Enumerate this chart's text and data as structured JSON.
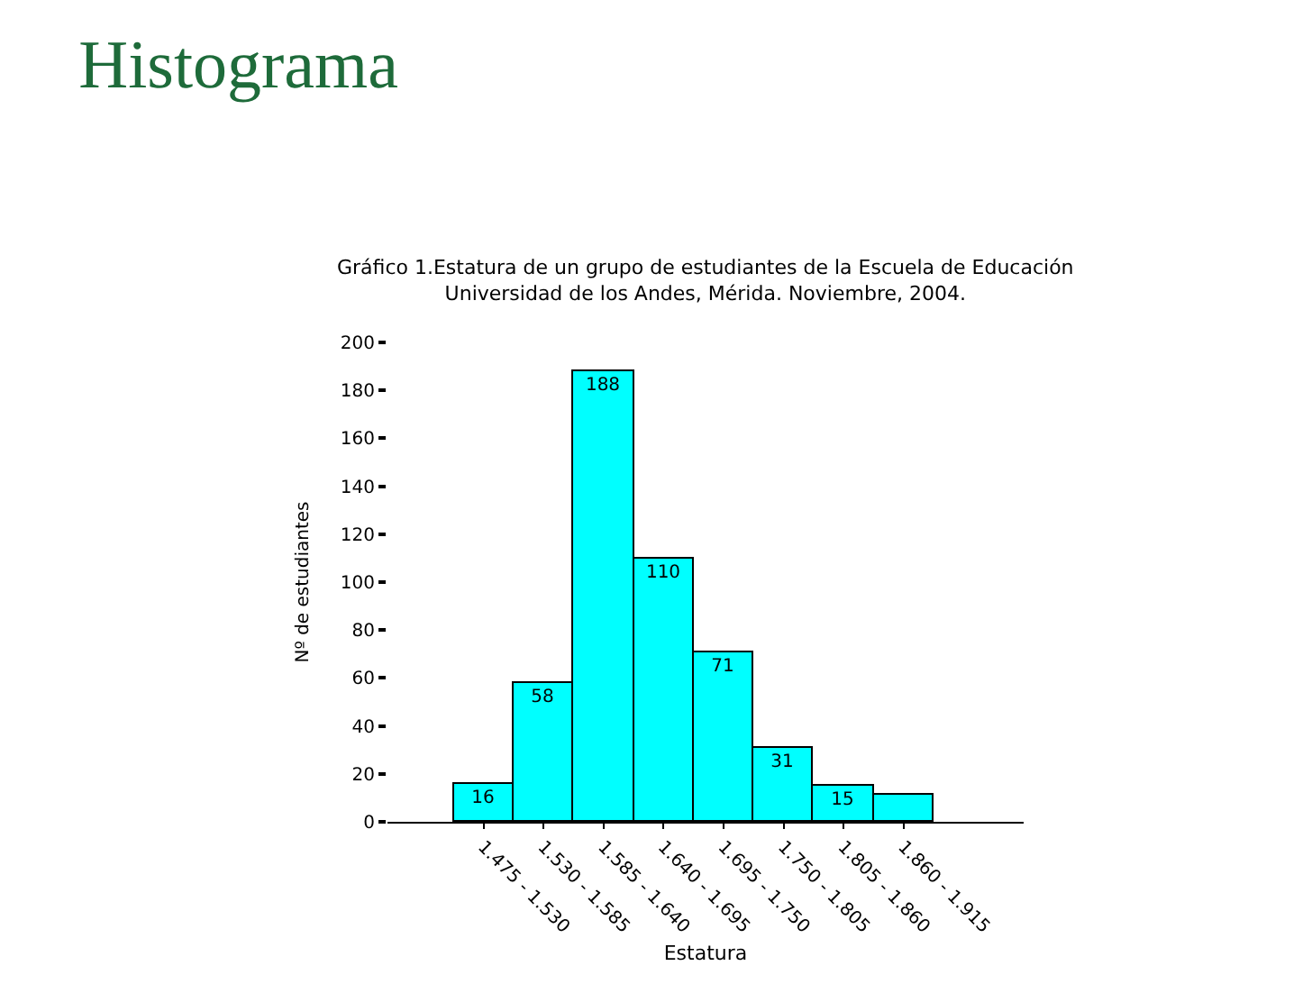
{
  "chart_data": {
    "type": "bar",
    "title": "Histograma",
    "subtitle": "Gráfico 1.Estatura de un grupo de estudiantes de la Escuela de Educación\nUniversidad de los Andes, Mérida. Noviembre, 2004.",
    "xlabel": "Estatura",
    "ylabel": "Nº de estudiantes",
    "categories": [
      "1.475 - 1.530",
      "1.530 - 1.585",
      "1.585 - 1.640",
      "1.640 - 1.695",
      "1.695 - 1.750",
      "1.750 - 1.805",
      "1.805 - 1.860",
      "1.860 - 1.915"
    ],
    "values": [
      16,
      58,
      188,
      110,
      71,
      31,
      15,
      11
    ],
    "value_labels": [
      "16",
      "58",
      "188",
      "110",
      "71",
      "31",
      "15",
      null
    ],
    "color": "#00ffff",
    "ylim": [
      0,
      200
    ],
    "yticks": [
      0,
      20,
      40,
      60,
      80,
      100,
      120,
      140,
      160,
      180,
      200
    ]
  }
}
